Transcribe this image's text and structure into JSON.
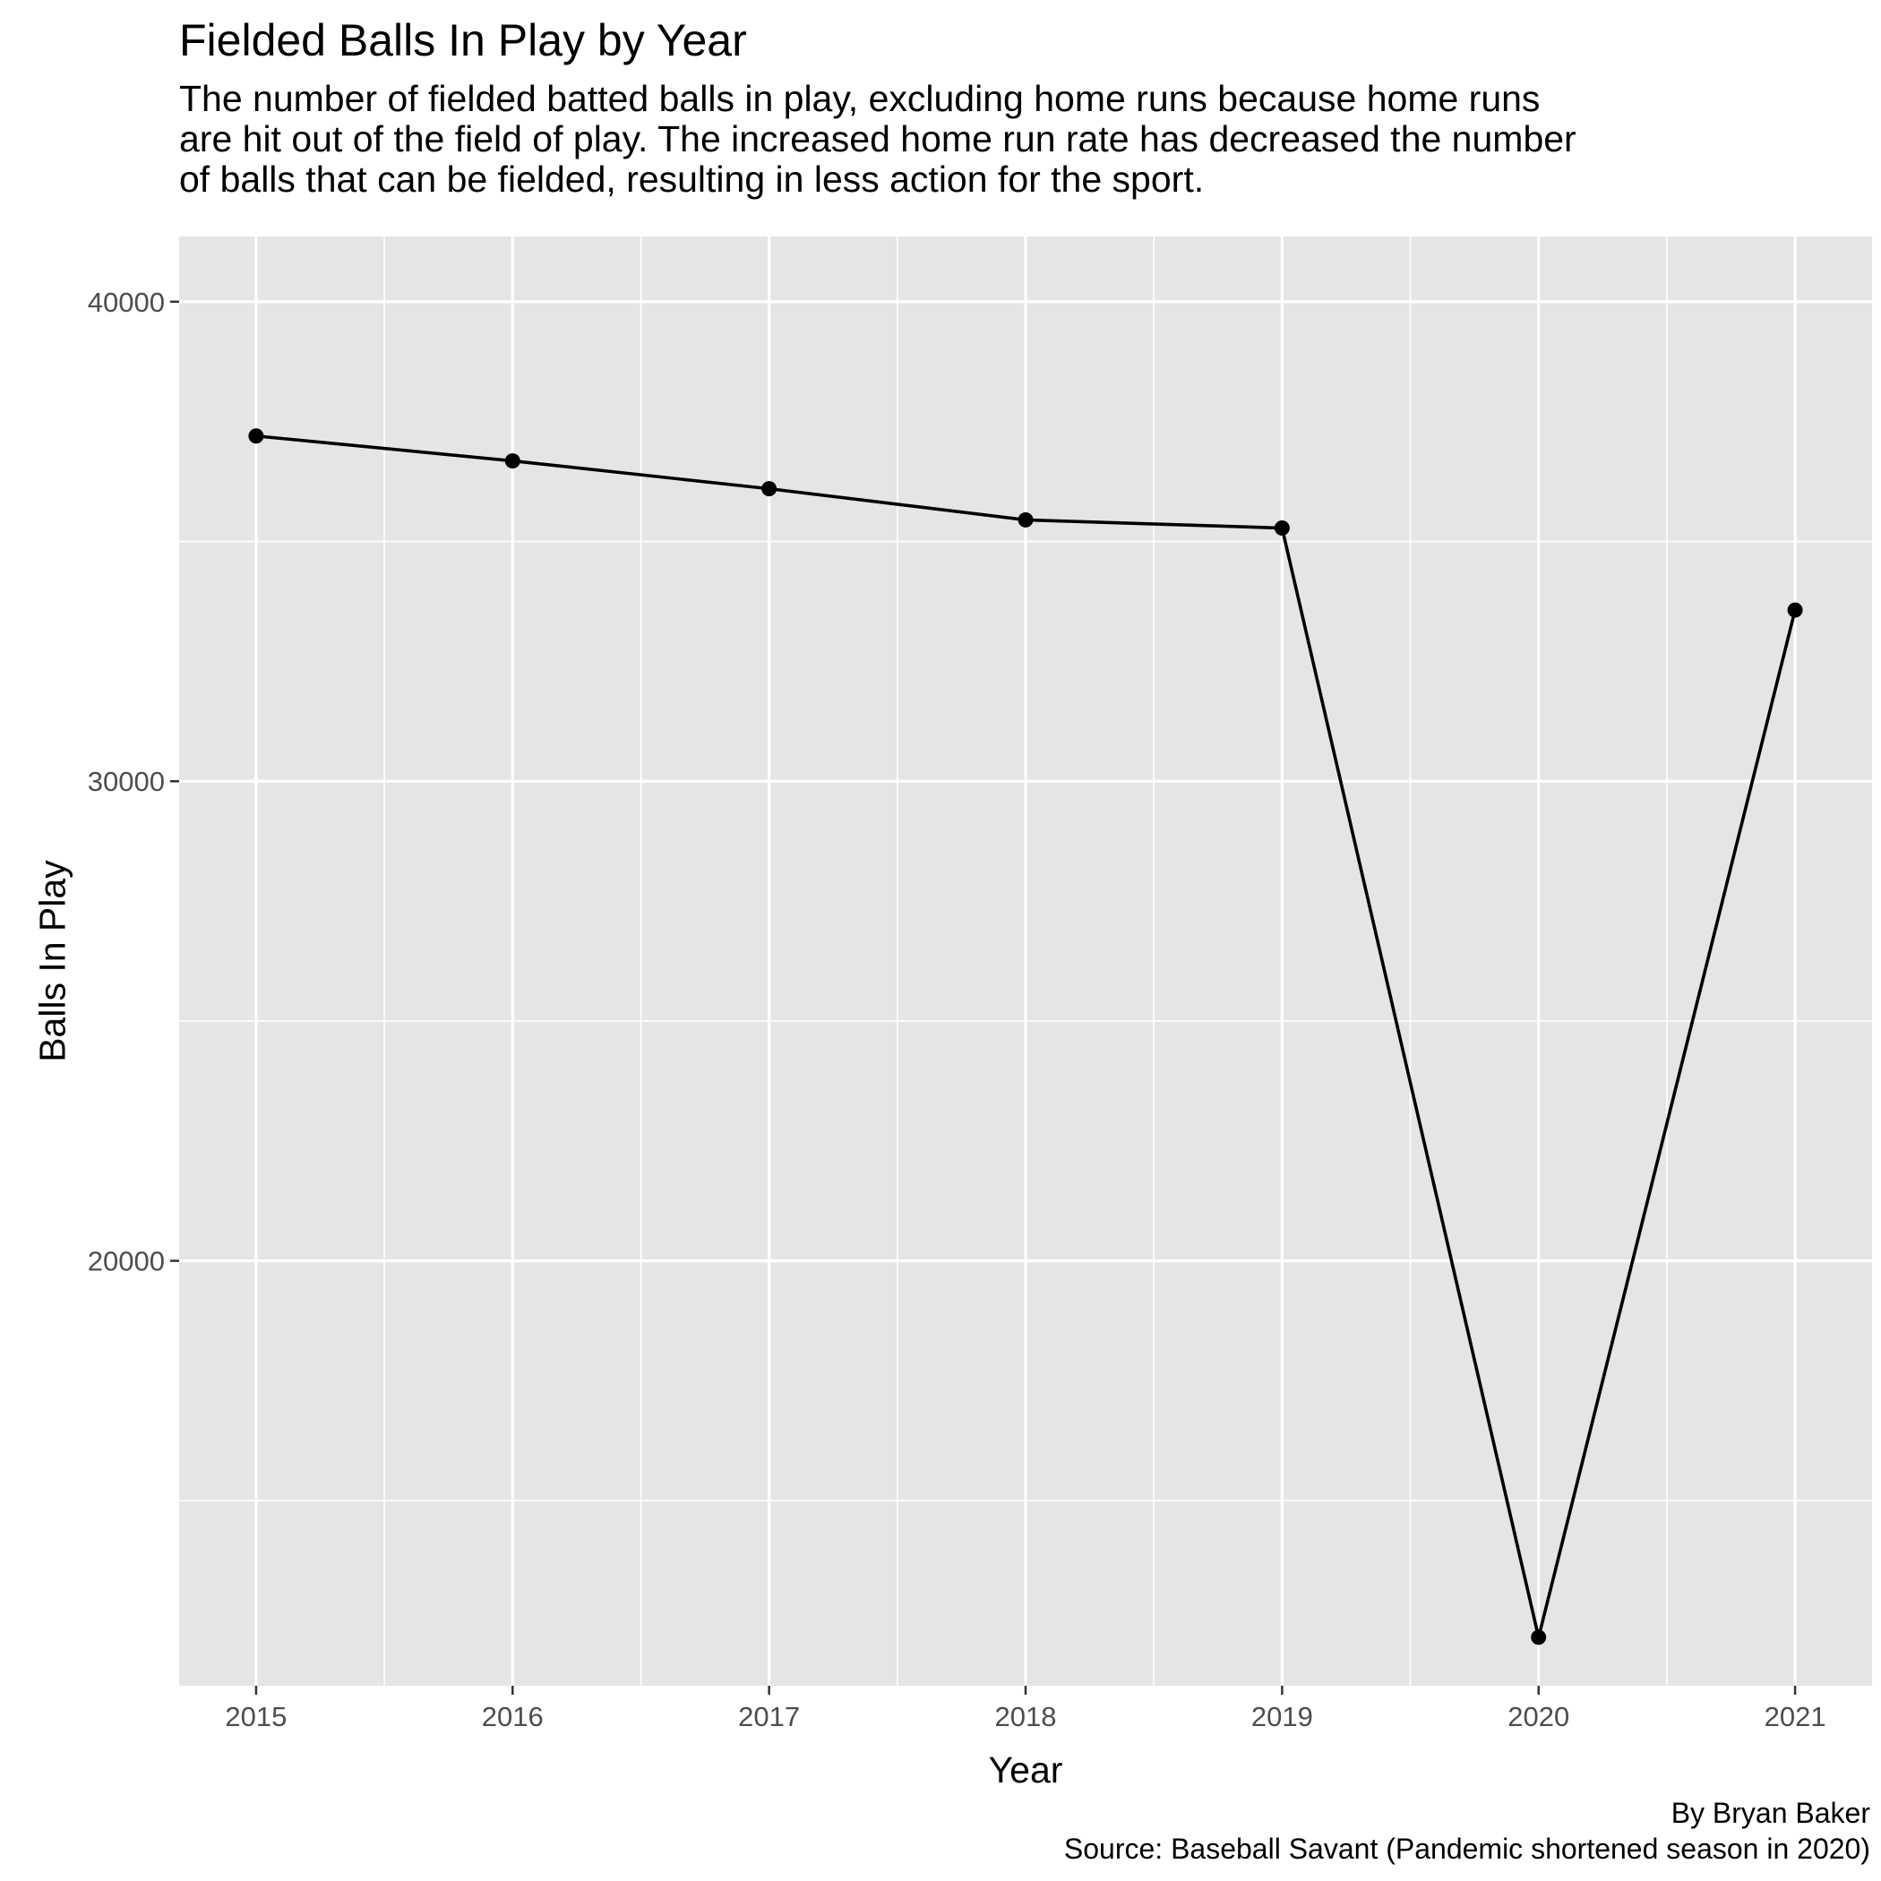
{
  "chart_data": {
    "type": "line",
    "title": "Fielded Balls In Play by Year",
    "subtitle_lines": [
      "The number of fielded batted balls in play, excluding home runs because home runs",
      "are hit out of the field of play. The increased home run rate has decreased the number",
      "of balls that can be fielded, resulting in less action for the sport."
    ],
    "xlabel": "Year",
    "ylabel": "Balls In Play",
    "x": [
      2015,
      2016,
      2017,
      2018,
      2019,
      2020,
      2021
    ],
    "series": [
      {
        "values": [
          37200,
          36680,
          36100,
          35450,
          35280,
          12150,
          33570
        ]
      }
    ],
    "xlim": [
      2014.7,
      2021.3
    ],
    "ylim": [
      11140,
      41360
    ],
    "x_ticks": [
      2015,
      2016,
      2017,
      2018,
      2019,
      2020,
      2021
    ],
    "y_ticks": [
      20000,
      30000,
      40000
    ],
    "grid": true,
    "legend": "none",
    "caption_lines": [
      "By Bryan Baker",
      "Source: Baseball Savant (Pandemic shortened season in 2020)"
    ]
  },
  "colors": {
    "panel_background": "#e5e5e5",
    "grid_major": "#ffffff",
    "line": "#000000",
    "points": "#000000",
    "tick_text": "#4d4d4d",
    "tick_marks": "#333333"
  }
}
